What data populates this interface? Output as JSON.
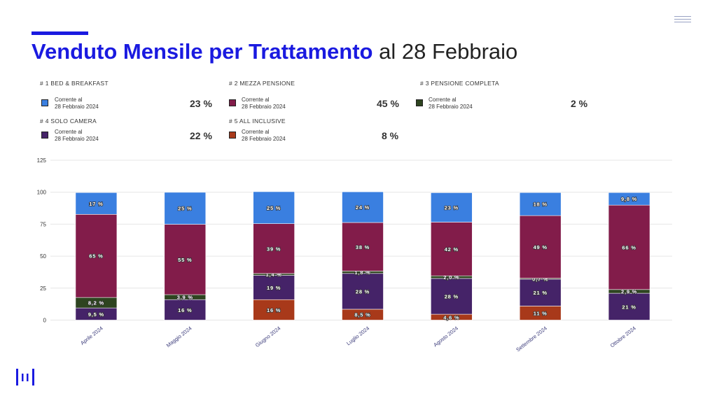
{
  "title": {
    "bold": "Venduto Mensile per Trattamento",
    "light": "al 28 Febbraio"
  },
  "kpis": [
    {
      "head": "# 1 BED & BREAKFAST",
      "note1": "Corrente al",
      "note2": "28 Febbraio 2024",
      "value": "23 %",
      "color": "#3a7fe0"
    },
    {
      "head": "# 2 MEZZA PENSIONE",
      "note1": "Corrente al",
      "note2": "28 Febbraio 2024",
      "value": "45 %",
      "color": "#821c4a"
    },
    {
      "head": "# 3 PENSIONE COMPLETA",
      "note1": "Corrente al",
      "note2": "28 Febbraio 2024",
      "value": "2 %",
      "color": "#2e4420"
    },
    {
      "head": "# 4 SOLO CAMERA",
      "note1": "Corrente al",
      "note2": "28 Febbraio 2024",
      "value": "22 %",
      "color": "#452368"
    },
    {
      "head": "# 5 ALL INCLUSIVE",
      "note1": "Corrente al",
      "note2": "28 Febbraio 2024",
      "value": "8 %",
      "color": "#a8391a"
    }
  ],
  "chart_data": {
    "type": "bar",
    "stacked": true,
    "categories": [
      "Aprile 2024",
      "Maggio 2024",
      "Giugno 2024",
      "Luglio 2024",
      "Agosto 2024",
      "Settembre 2024",
      "Ottobre 2024"
    ],
    "ylim": [
      0,
      125
    ],
    "yticks": [
      0,
      25,
      50,
      75,
      100,
      125
    ],
    "grid": true,
    "series": [
      {
        "key": "all_inclusive",
        "color": "#a8391a",
        "values": [
          0,
          0,
          16,
          8.5,
          4.6,
          11,
          0
        ],
        "labels": [
          "",
          "",
          "16 %",
          "8,5 %",
          "4,6 %",
          "11 %",
          ""
        ]
      },
      {
        "key": "solo_camera",
        "color": "#452368",
        "values": [
          9.5,
          16,
          19,
          28,
          28,
          21,
          21
        ],
        "labels": [
          "9,5 %",
          "16 %",
          "19 %",
          "28 %",
          "28 %",
          "21 %",
          "21 %"
        ]
      },
      {
        "key": "pensione_completa",
        "color": "#2e4420",
        "values": [
          8.2,
          3.9,
          1.4,
          1.8,
          2.0,
          0.7,
          2.9
        ],
        "labels": [
          "8,2 %",
          "3,9 %",
          "1,4 %",
          "1,8 %",
          "2,0 %",
          "0,7 %",
          "2,9 %"
        ]
      },
      {
        "key": "mezza_pensione",
        "color": "#821c4a",
        "values": [
          65,
          55,
          39,
          38,
          42,
          49,
          66
        ],
        "labels": [
          "65 %",
          "55 %",
          "39 %",
          "38 %",
          "42 %",
          "49 %",
          "66 %"
        ]
      },
      {
        "key": "bed_breakfast",
        "color": "#3a7fe0",
        "values": [
          17,
          25,
          25,
          24,
          23,
          18,
          9.8
        ],
        "labels": [
          "17 %",
          "25 %",
          "25 %",
          "24 %",
          "23 %",
          "18 %",
          "9,8 %"
        ]
      }
    ]
  }
}
